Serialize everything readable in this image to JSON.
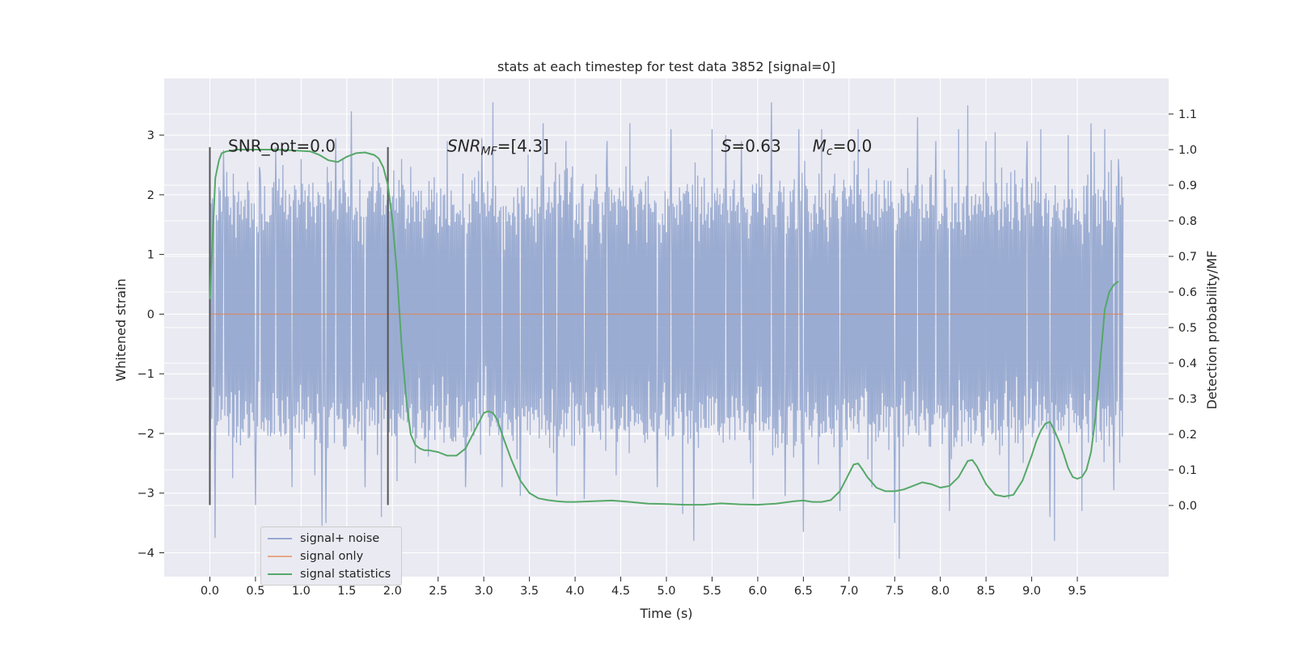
{
  "chart_data": {
    "type": "line",
    "title": "stats at each timestep for test data 3852 [signal=0]",
    "xlabel": "Time (s)",
    "ylabel": "Whitened strain",
    "y2label": "Detection probability/MF",
    "xlim": [
      -0.5,
      10.5
    ],
    "ylim": [
      -4.4,
      3.95
    ],
    "y2lim": [
      -0.2,
      1.2
    ],
    "xticks": [
      0.0,
      0.5,
      1.0,
      1.5,
      2.0,
      2.5,
      3.0,
      3.5,
      4.0,
      4.5,
      5.0,
      5.5,
      6.0,
      6.5,
      7.0,
      7.5,
      8.0,
      8.5,
      9.0,
      9.5
    ],
    "xtick_labels": [
      "0.0",
      "0.5",
      "1.0",
      "1.5",
      "2.0",
      "2.5",
      "3.0",
      "3.5",
      "4.0",
      "4.5",
      "5.0",
      "5.5",
      "6.0",
      "6.5",
      "7.0",
      "7.5",
      "8.0",
      "8.5",
      "9.0",
      "9.5"
    ],
    "yticks": [
      -4,
      -3,
      -2,
      -1,
      0,
      1,
      2,
      3
    ],
    "ytick_labels": [
      "−4",
      "−3",
      "−2",
      "−1",
      "0",
      "1",
      "2",
      "3"
    ],
    "y2ticks": [
      0.0,
      0.1,
      0.2,
      0.3,
      0.4,
      0.5,
      0.6,
      0.7,
      0.8,
      0.9,
      1.0,
      1.1
    ],
    "y2tick_labels": [
      "0.0",
      "0.1",
      "0.2",
      "0.3",
      "0.4",
      "0.5",
      "0.6",
      "0.7",
      "0.8",
      "0.9",
      "1.0",
      "1.1"
    ],
    "grid": true,
    "legend_position": "lower-left",
    "colors": {
      "background": "#eaeaf2",
      "grid": "#ffffff",
      "noise": "#97a9d0",
      "signal": "#dd8452",
      "statistics": "#55a868",
      "markers": "#555555"
    },
    "series": [
      {
        "name": "signal+ noise",
        "axis": "left",
        "x_range": [
          0.0,
          10.0
        ],
        "envelope_upper": 1.6,
        "envelope_lower": -1.55,
        "spikes": [
          [
            0.06,
            -3.75
          ],
          [
            0.15,
            2.75
          ],
          [
            0.25,
            -2.75
          ],
          [
            0.5,
            -3.2
          ],
          [
            0.55,
            2.4
          ],
          [
            0.72,
            2.8
          ],
          [
            0.8,
            2.5
          ],
          [
            0.9,
            -2.9
          ],
          [
            1.0,
            2.6
          ],
          [
            1.15,
            -2.7
          ],
          [
            1.23,
            -3.55
          ],
          [
            1.27,
            -3.5
          ],
          [
            1.38,
            2.95
          ],
          [
            1.55,
            3.4
          ],
          [
            1.7,
            -2.9
          ],
          [
            1.88,
            -3.4
          ],
          [
            2.05,
            -2.8
          ],
          [
            2.1,
            2.6
          ],
          [
            2.25,
            -2.5
          ],
          [
            2.6,
            2.9
          ],
          [
            2.8,
            -2.9
          ],
          [
            2.98,
            2.95
          ],
          [
            3.1,
            3.55
          ],
          [
            3.2,
            -2.9
          ],
          [
            3.4,
            -3.05
          ],
          [
            3.65,
            3.2
          ],
          [
            3.8,
            -3.05
          ],
          [
            3.9,
            2.9
          ],
          [
            4.1,
            -3.1
          ],
          [
            4.35,
            2.9
          ],
          [
            4.45,
            -2.7
          ],
          [
            4.6,
            3.2
          ],
          [
            4.9,
            -2.9
          ],
          [
            5.05,
            3.1
          ],
          [
            5.18,
            -3.35
          ],
          [
            5.3,
            -3.8
          ],
          [
            5.5,
            3.1
          ],
          [
            5.65,
            3.0
          ],
          [
            5.82,
            2.9
          ],
          [
            5.95,
            -3.1
          ],
          [
            6.15,
            3.55
          ],
          [
            6.3,
            -3.05
          ],
          [
            6.45,
            3.1
          ],
          [
            6.5,
            -3.65
          ],
          [
            6.7,
            3.1
          ],
          [
            6.9,
            -3.3
          ],
          [
            7.1,
            3.1
          ],
          [
            7.25,
            -2.9
          ],
          [
            7.5,
            -3.5
          ],
          [
            7.55,
            -4.1
          ],
          [
            7.75,
            3.3
          ],
          [
            7.95,
            2.9
          ],
          [
            8.1,
            -3.3
          ],
          [
            8.2,
            3.1
          ],
          [
            8.3,
            3.5
          ],
          [
            8.5,
            2.9
          ],
          [
            8.6,
            3.05
          ],
          [
            8.75,
            -3.1
          ],
          [
            8.95,
            2.9
          ],
          [
            9.1,
            3.1
          ],
          [
            9.2,
            -3.4
          ],
          [
            9.25,
            -3.8
          ],
          [
            9.4,
            3.0
          ],
          [
            9.55,
            -3.3
          ],
          [
            9.65,
            3.2
          ],
          [
            9.8,
            3.1
          ],
          [
            9.9,
            -2.95
          ],
          [
            9.95,
            2.6
          ]
        ]
      },
      {
        "name": "signal only",
        "axis": "left",
        "x": [
          0.0,
          10.0
        ],
        "y": [
          0.0,
          0.0
        ]
      },
      {
        "name": "signal statistics",
        "axis": "right",
        "x": [
          0.0,
          0.03,
          0.06,
          0.1,
          0.13,
          0.18,
          0.3,
          0.5,
          0.7,
          0.9,
          1.1,
          1.2,
          1.3,
          1.4,
          1.5,
          1.6,
          1.7,
          1.8,
          1.85,
          1.9,
          1.95,
          2.0,
          2.05,
          2.1,
          2.15,
          2.2,
          2.25,
          2.3,
          2.35,
          2.4,
          2.5,
          2.6,
          2.7,
          2.8,
          2.9,
          3.0,
          3.05,
          3.1,
          3.15,
          3.2,
          3.3,
          3.4,
          3.5,
          3.6,
          3.7,
          3.8,
          3.9,
          4.0,
          4.2,
          4.4,
          4.6,
          4.8,
          5.0,
          5.2,
          5.4,
          5.6,
          5.8,
          6.0,
          6.2,
          6.4,
          6.5,
          6.6,
          6.7,
          6.8,
          6.9,
          7.0,
          7.05,
          7.1,
          7.15,
          7.2,
          7.3,
          7.4,
          7.5,
          7.6,
          7.7,
          7.8,
          7.9,
          8.0,
          8.1,
          8.2,
          8.3,
          8.35,
          8.4,
          8.5,
          8.6,
          8.7,
          8.8,
          8.9,
          9.0,
          9.05,
          9.1,
          9.15,
          9.2,
          9.25,
          9.3,
          9.35,
          9.4,
          9.45,
          9.5,
          9.55,
          9.6,
          9.65,
          9.7,
          9.75,
          9.8,
          9.85,
          9.9,
          9.95
        ],
        "y": [
          0.58,
          0.75,
          0.92,
          0.97,
          0.99,
          0.995,
          1.0,
          1.0,
          1.0,
          0.998,
          0.995,
          0.985,
          0.97,
          0.965,
          0.98,
          0.99,
          0.992,
          0.985,
          0.975,
          0.95,
          0.9,
          0.8,
          0.65,
          0.45,
          0.3,
          0.2,
          0.17,
          0.16,
          0.155,
          0.155,
          0.15,
          0.14,
          0.14,
          0.16,
          0.21,
          0.26,
          0.265,
          0.26,
          0.24,
          0.2,
          0.13,
          0.07,
          0.035,
          0.02,
          0.015,
          0.012,
          0.01,
          0.01,
          0.012,
          0.014,
          0.01,
          0.005,
          0.004,
          0.002,
          0.002,
          0.006,
          0.003,
          0.002,
          0.005,
          0.012,
          0.014,
          0.01,
          0.01,
          0.015,
          0.04,
          0.09,
          0.115,
          0.118,
          0.1,
          0.08,
          0.05,
          0.04,
          0.04,
          0.045,
          0.055,
          0.065,
          0.06,
          0.05,
          0.055,
          0.08,
          0.125,
          0.128,
          0.11,
          0.06,
          0.03,
          0.025,
          0.03,
          0.07,
          0.14,
          0.18,
          0.21,
          0.23,
          0.235,
          0.21,
          0.18,
          0.145,
          0.105,
          0.08,
          0.075,
          0.08,
          0.1,
          0.15,
          0.25,
          0.4,
          0.55,
          0.6,
          0.62,
          0.63
        ]
      }
    ],
    "markers": {
      "x": [
        0.0,
        1.95
      ],
      "y_range": [
        -3.2,
        2.8
      ]
    },
    "annotations": [
      {
        "x": 0.2,
        "y": 2.72,
        "segments": [
          {
            "text": "SNR_opt=0.0",
            "style": "normal"
          }
        ]
      },
      {
        "x": 2.6,
        "y": 2.72,
        "segments": [
          {
            "text": "SNR",
            "style": "italic"
          },
          {
            "text": "MF",
            "style": "italic-sub"
          },
          {
            "text": "=[4.3]",
            "style": "normal"
          }
        ]
      },
      {
        "x": 5.6,
        "y": 2.72,
        "segments": [
          {
            "text": "S",
            "style": "italic"
          },
          {
            "text": "=0.63",
            "style": "normal"
          }
        ]
      },
      {
        "x": 6.6,
        "y": 2.72,
        "segments": [
          {
            "text": "M",
            "style": "italic"
          },
          {
            "text": "c",
            "style": "italic-sub"
          },
          {
            "text": "=0.0",
            "style": "normal"
          }
        ]
      }
    ]
  }
}
